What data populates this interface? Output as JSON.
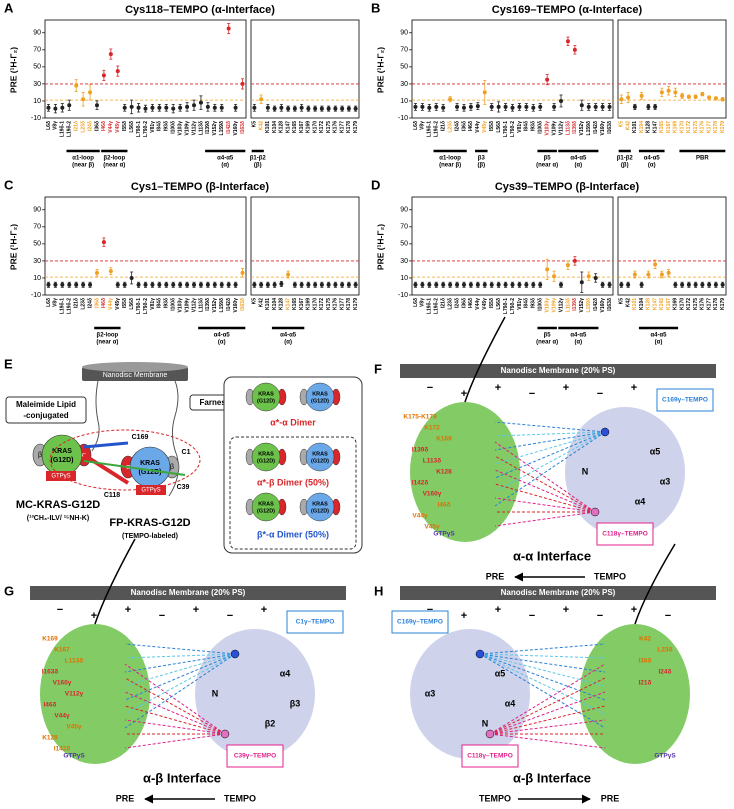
{
  "residues": {
    "left": [
      "L6δ",
      "V8γ",
      "L19δ-1",
      "L19δ-2",
      "I21δ",
      "L23δ",
      "I24δ",
      "I36δ",
      "I46δ",
      "V44γ",
      "V45γ",
      "I55δ",
      "L56δ",
      "L79δ-1",
      "L79δ-2",
      "V81γ",
      "I84δ",
      "I93δ",
      "I100δ",
      "V103γ",
      "V109γ",
      "V112γ",
      "L113δ",
      "I139δ",
      "V152γ",
      "L159δ",
      "I142δ",
      "V160γ",
      "I163δ"
    ],
    "right": [
      "K5",
      "K42",
      "K101",
      "K104",
      "K128",
      "K147",
      "K165",
      "K167",
      "K169",
      "K170",
      "K172",
      "K175",
      "K176",
      "K177",
      "K178",
      "K179"
    ]
  },
  "chart_data": [
    {
      "type": "scatter",
      "panel": "A",
      "title": "Cys118–TEMPO (α-Interface)",
      "ylabel": "PRE (¹H-Γ₂)",
      "ylim": [
        -10,
        105
      ],
      "yticks": [
        -10,
        10,
        30,
        50,
        70,
        90
      ],
      "thresholds": [
        {
          "value": 30,
          "color": "#d9262b"
        },
        {
          "value": 11,
          "color": "#f0a020"
        }
      ],
      "base_color": "#222",
      "subplots": [
        {
          "values": [
            2,
            1,
            2,
            5,
            28,
            12,
            20,
            5,
            40,
            65,
            45,
            2,
            3,
            2,
            1,
            2,
            2,
            2,
            1,
            2,
            3,
            5,
            8,
            3,
            2,
            2,
            95,
            2,
            30
          ],
          "errors": [
            4,
            5,
            5,
            6,
            7,
            8,
            9,
            5,
            6,
            6,
            6,
            4,
            8,
            5,
            4,
            4,
            4,
            4,
            5,
            4,
            5,
            6,
            8,
            5,
            4,
            4,
            6,
            4,
            6
          ],
          "groups": [
            {
              "label": "α1-loop",
              "sublabel": "(near β)",
              "from": 3,
              "to": 7
            },
            {
              "label": "β2-loop",
              "sublabel": "(near α)",
              "from": 8,
              "to": 11
            },
            {
              "label": "α4-α5",
              "sublabel": "(α)",
              "from": 23,
              "to": 28
            }
          ]
        },
        {
          "values": [
            2,
            12,
            2,
            1,
            2,
            1,
            1,
            2,
            1,
            1,
            1,
            1,
            1,
            1,
            1,
            1
          ],
          "errors": [
            4,
            5,
            4,
            3,
            4,
            3,
            3,
            4,
            3,
            3,
            3,
            3,
            3,
            3,
            3,
            3
          ],
          "groups": [
            {
              "label": "β1-β2",
              "sublabel": "(β)",
              "from": 0,
              "to": 1
            }
          ]
        }
      ]
    },
    {
      "type": "scatter",
      "panel": "B",
      "title": "Cys169–TEMPO (α-Interface)",
      "ylabel": "PRE (¹H-Γ₂)",
      "ylim": [
        -10,
        105
      ],
      "yticks": [
        -10,
        10,
        30,
        50,
        70,
        90
      ],
      "thresholds": [
        {
          "value": 30,
          "color": "#d9262b"
        },
        {
          "value": 11,
          "color": "#f0a020"
        }
      ],
      "base_color": "#222",
      "subplots": [
        {
          "values": [
            3,
            3,
            2,
            3,
            2,
            12,
            3,
            2,
            3,
            4,
            20,
            3,
            3,
            3,
            2,
            3,
            3,
            2,
            3,
            35,
            3,
            10,
            80,
            70,
            5,
            3,
            3,
            3,
            3
          ],
          "errors": [
            4,
            4,
            4,
            4,
            4,
            3,
            4,
            4,
            4,
            4,
            14,
            4,
            6,
            4,
            4,
            4,
            4,
            4,
            4,
            6,
            4,
            7,
            5,
            5,
            6,
            4,
            4,
            4,
            4
          ],
          "groups": [
            {
              "label": "α1-loop",
              "sublabel": "(near β)",
              "from": 3,
              "to": 7
            },
            {
              "label": "β3",
              "sublabel": "(β)",
              "from": 9,
              "to": 10
            },
            {
              "label": "β5",
              "sublabel": "(near α)",
              "from": 18,
              "to": 20
            },
            {
              "label": "α4-α5",
              "sublabel": "(α)",
              "from": 21,
              "to": 26
            }
          ]
        },
        {
          "values": [
            12,
            14,
            3,
            16,
            3,
            3,
            20,
            22,
            20,
            16,
            15,
            15,
            18,
            14,
            13,
            12
          ],
          "errors": [
            5,
            6,
            3,
            4,
            3,
            3,
            5,
            5,
            5,
            3,
            2,
            2,
            2,
            2,
            2,
            2
          ],
          "groups": [
            {
              "label": "β1-β2",
              "sublabel": "(β)",
              "from": 0,
              "to": 1
            },
            {
              "label": "α4-α5",
              "sublabel": "(α)",
              "from": 3,
              "to": 6
            },
            {
              "label": "PBR",
              "sublabel": "",
              "from": 9,
              "to": 15
            }
          ]
        }
      ]
    },
    {
      "type": "scatter",
      "panel": "C",
      "title": "Cys1–TEMPO (β-Interface)",
      "ylabel": "PRE (¹H-Γ₂)",
      "ylim": [
        -10,
        105
      ],
      "yticks": [
        -10,
        10,
        30,
        50,
        70,
        90
      ],
      "thresholds": [
        {
          "value": 30,
          "color": "#d9262b"
        },
        {
          "value": 11,
          "color": "#f0a020"
        }
      ],
      "base_color": "#222",
      "subplots": [
        {
          "values": [
            2,
            2,
            2,
            2,
            2,
            2,
            2,
            16,
            52,
            18,
            2,
            2,
            10,
            2,
            2,
            2,
            2,
            2,
            2,
            2,
            2,
            2,
            2,
            2,
            2,
            2,
            2,
            2,
            16
          ],
          "errors": [
            3,
            3,
            3,
            3,
            3,
            3,
            3,
            4,
            5,
            4,
            3,
            3,
            7,
            3,
            3,
            3,
            3,
            3,
            3,
            3,
            3,
            3,
            3,
            3,
            3,
            3,
            3,
            3,
            5
          ],
          "groups": [
            {
              "label": "β2-loop",
              "sublabel": "(near α)",
              "from": 7,
              "to": 10
            },
            {
              "label": "α4-α5",
              "sublabel": "(α)",
              "from": 22,
              "to": 28
            }
          ]
        },
        {
          "values": [
            2,
            2,
            2,
            2,
            3,
            14,
            2,
            2,
            2,
            2,
            2,
            2,
            2,
            2,
            2,
            2
          ],
          "errors": [
            3,
            3,
            3,
            3,
            3,
            4,
            3,
            3,
            3,
            3,
            3,
            3,
            3,
            3,
            3,
            3
          ],
          "groups": [
            {
              "label": "α4-α5",
              "sublabel": "(α)",
              "from": 3,
              "to": 7
            }
          ]
        }
      ]
    },
    {
      "type": "scatter",
      "panel": "D",
      "title": "Cys39–TEMPO (β-Interface)",
      "ylabel": "PRE (¹H-Γ₂)",
      "ylim": [
        -10,
        105
      ],
      "yticks": [
        -10,
        10,
        30,
        50,
        70,
        90
      ],
      "thresholds": [
        {
          "value": 30,
          "color": "#d9262b"
        },
        {
          "value": 11,
          "color": "#f0a020"
        }
      ],
      "base_color": "#222",
      "subplots": [
        {
          "values": [
            2,
            2,
            2,
            2,
            2,
            2,
            2,
            2,
            2,
            2,
            2,
            2,
            2,
            2,
            2,
            2,
            2,
            2,
            2,
            20,
            12,
            2,
            25,
            30,
            5,
            12,
            10,
            2,
            2
          ],
          "errors": [
            3,
            3,
            3,
            3,
            3,
            3,
            3,
            3,
            3,
            3,
            3,
            3,
            3,
            3,
            3,
            3,
            3,
            3,
            3,
            12,
            6,
            3,
            5,
            5,
            12,
            5,
            5,
            3,
            3
          ],
          "groups": [
            {
              "label": "β5",
              "sublabel": "(near α)",
              "from": 18,
              "to": 20
            },
            {
              "label": "α4-α5",
              "sublabel": "(α)",
              "from": 21,
              "to": 26
            }
          ]
        },
        {
          "values": [
            2,
            2,
            14,
            2,
            14,
            26,
            14,
            16,
            2,
            2,
            2,
            2,
            2,
            2,
            2,
            2
          ],
          "errors": [
            3,
            3,
            4,
            3,
            4,
            5,
            4,
            4,
            3,
            3,
            3,
            3,
            3,
            3,
            3,
            3
          ],
          "groups": [
            {
              "label": "α4-α5",
              "sublabel": "(α)",
              "from": 3,
              "to": 8
            }
          ]
        }
      ]
    }
  ],
  "panel_E": {
    "letter": "E",
    "membrane": "Nanodisc Membrane",
    "lipid": [
      "Maleimide Lipid",
      "-conjugated"
    ],
    "farnesyl": "Farnesyl",
    "protein": [
      "KRAS",
      "(G12D)"
    ],
    "gtp": "GTPγS",
    "mc_name": "MC-KRAS-G12D",
    "mc_label": "(¹³CH₃-ILV/ ¹⁵NH-K)",
    "fp_name": "FP-KRAS-G12D",
    "fp_label": "(TEMPO-labeled)",
    "sites": [
      "C169",
      "C118",
      "C1",
      "C39"
    ],
    "alpha": "α",
    "beta": "β",
    "dimers": [
      "α*-α Dimer",
      "α*-β Dimer (50%)",
      "β*-α Dimer (50%)"
    ]
  },
  "panel_F": {
    "letter": "F",
    "membrane": "Nanodisc Membrane (20% PS)",
    "tempo_sites": [
      "C169γ–TEMPO",
      "C118γ–TEMPO"
    ],
    "interface": "α-α Interface",
    "arrow": [
      "PRE",
      "TEMPO"
    ],
    "charges": [
      "−",
      "+",
      "+",
      "−",
      "+",
      "−",
      "+",
      "−"
    ],
    "residues": [
      "K175-K179",
      "K172",
      "K169",
      "I139δ",
      "L113δ",
      "K128",
      "I142δ",
      "V160γ",
      "I46δ",
      "V44γ",
      "V45γ",
      "GTPγS"
    ],
    "helices": [
      "α5",
      "α3",
      "α4",
      "N"
    ]
  },
  "panel_G": {
    "letter": "G",
    "membrane": "Nanodisc Membrane (20% PS)",
    "tempo_sites": [
      "C1γ–TEMPO",
      "C39γ–TEMPO"
    ],
    "interface": "α-β Interface",
    "arrow": [
      "PRE",
      "TEMPO"
    ],
    "charges": [
      "−",
      "+",
      "+",
      "−",
      "+",
      "−",
      "+",
      "−"
    ],
    "residues": [
      "K169",
      "K167",
      "L113δ",
      "I163δ",
      "V160γ",
      "V112γ",
      "I46δ",
      "V44γ",
      "V45γ",
      "K128",
      "I142δ",
      "GTPγS"
    ],
    "helices": [
      "α4",
      "β3",
      "β2",
      "N"
    ]
  },
  "panel_H": {
    "letter": "H",
    "membrane": "Nanodisc Membrane (20% PS)",
    "tempo_sites": [
      "C169γ–TEMPO",
      "C118γ–TEMPO"
    ],
    "interface": "α-β Interface",
    "arrow": [
      "TEMPO",
      "PRE"
    ],
    "charges": [
      "−",
      "+",
      "+",
      "−",
      "+",
      "−",
      "+",
      "−"
    ],
    "residues": [
      "K42",
      "L23δ",
      "I36δ",
      "I24δ",
      "I21δ",
      "GTPγS"
    ],
    "helices": [
      "α5",
      "α4",
      "N",
      "α3"
    ]
  }
}
